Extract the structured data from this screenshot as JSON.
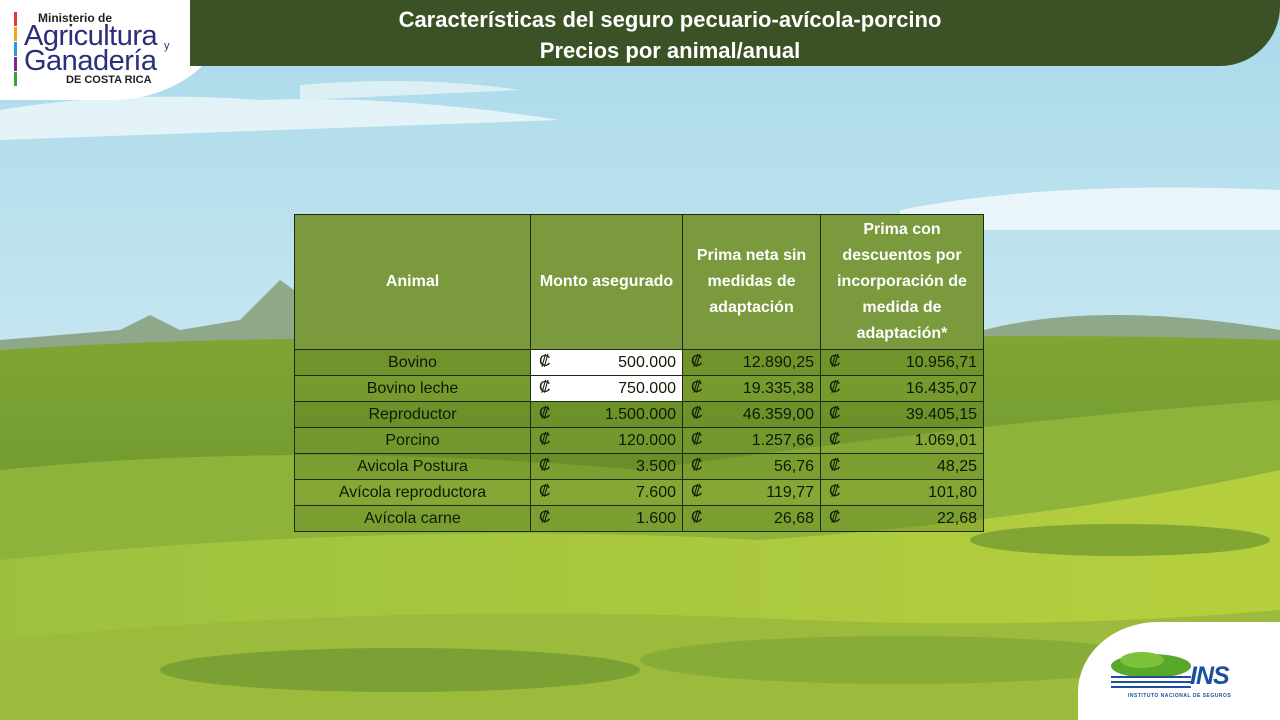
{
  "header": {
    "title_line1": "Características del seguro pecuario-avícola-porcino",
    "title_line2": "Precios por animal/anual"
  },
  "logos": {
    "mag": {
      "line1": "Ministerio de",
      "line2": "Agricultura",
      "y": "y",
      "line3": "Ganadería",
      "line4": "DE COSTA RICA"
    },
    "ins": {
      "name": "INS",
      "subtitle": "INSTITUTO NACIONAL DE SEGUROS"
    }
  },
  "table": {
    "headers": [
      "Animal",
      "Monto asegurado",
      "Prima neta sin medidas de adaptación",
      "Prima con descuentos por incorporación de medida de adaptación*"
    ],
    "currency_symbol": "₡",
    "rows": [
      {
        "animal": "Bovino",
        "monto": "500.000",
        "prima": "12.890,25",
        "desc": "10.956,71"
      },
      {
        "animal": "Bovino leche",
        "monto": "750.000",
        "prima": "19.335,38",
        "desc": "16.435,07"
      },
      {
        "animal": "Reproductor",
        "monto": "1.500.000",
        "prima": "46.359,00",
        "desc": "39.405,15"
      },
      {
        "animal": "Porcino",
        "monto": "120.000",
        "prima": "1.257,66",
        "desc": "1.069,01"
      },
      {
        "animal": "Avicola Postura",
        "monto": "3.500",
        "prima": "56,76",
        "desc": "48,25"
      },
      {
        "animal": "Avícola reproductora",
        "monto": "7.600",
        "prima": "119,77",
        "desc": "101,80"
      },
      {
        "animal": "Avícola carne",
        "monto": "1.600",
        "prima": "26,68",
        "desc": "22,68"
      }
    ]
  },
  "colors": {
    "banner": "#3b5226",
    "header_cell": "#7a9a3d",
    "sky": "#bfe3f0",
    "grass": "#8fb23a"
  }
}
